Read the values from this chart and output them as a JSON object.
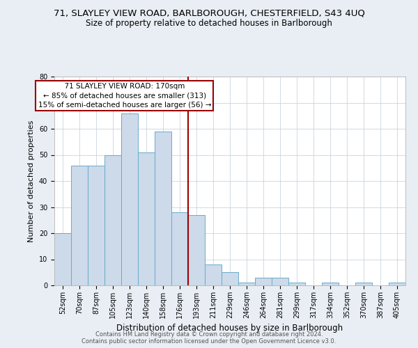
{
  "title": "71, SLAYLEY VIEW ROAD, BARLBOROUGH, CHESTERFIELD, S43 4UQ",
  "subtitle": "Size of property relative to detached houses in Barlborough",
  "xlabel": "Distribution of detached houses by size in Barlborough",
  "ylabel": "Number of detached properties",
  "categories": [
    "52sqm",
    "70sqm",
    "87sqm",
    "105sqm",
    "123sqm",
    "140sqm",
    "158sqm",
    "176sqm",
    "193sqm",
    "211sqm",
    "229sqm",
    "246sqm",
    "264sqm",
    "281sqm",
    "299sqm",
    "317sqm",
    "334sqm",
    "352sqm",
    "370sqm",
    "387sqm",
    "405sqm"
  ],
  "values": [
    20,
    46,
    46,
    50,
    66,
    51,
    59,
    28,
    27,
    8,
    5,
    1,
    3,
    3,
    1,
    0,
    1,
    0,
    1,
    0,
    1
  ],
  "bar_color": "#ccdaea",
  "bar_edge_color": "#6aaaca",
  "highlight_line_color": "#990000",
  "annotation_line1": "  71 SLAYLEY VIEW ROAD: 170sqm  ",
  "annotation_line2": "← 85% of detached houses are smaller (313)",
  "annotation_line3": "15% of semi-detached houses are larger (56) →",
  "annotation_box_color": "#990000",
  "ylim": [
    0,
    80
  ],
  "yticks": [
    0,
    10,
    20,
    30,
    40,
    50,
    60,
    70,
    80
  ],
  "title_fontsize": 9.5,
  "subtitle_fontsize": 8.5,
  "xlabel_fontsize": 8.5,
  "ylabel_fontsize": 8,
  "tick_fontsize": 7,
  "ann_fontsize": 7.5,
  "footer_line1": "Contains HM Land Registry data © Crown copyright and database right 2024.",
  "footer_line2": "Contains public sector information licensed under the Open Government Licence v3.0.",
  "background_color": "#e8eef4",
  "plot_bg_color": "#ffffff"
}
